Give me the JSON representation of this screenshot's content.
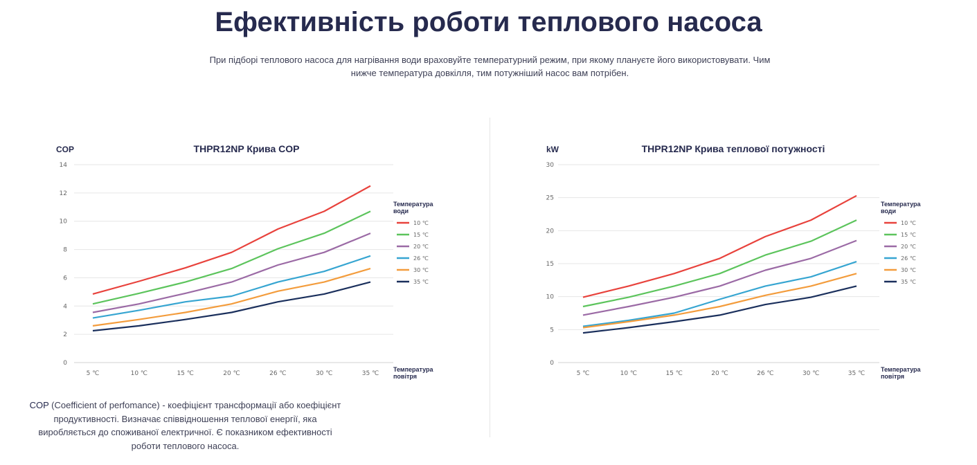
{
  "header": {
    "title": "Ефективність роботи теплового насоса",
    "subtitle": "При підборі теплового насоса для нагрівання води враховуйте температурний режим, при якому плануєте його використовувати. Чим нижче температура довкілля, тим потужніший насос вам потрібен."
  },
  "note": {
    "term": "COP",
    "text": " (Coefficient of perfomance) - коефіцієнт трансформації або коефіцієнт продуктивності. Визначає співвідношення теплової енергії, яка виробляється до споживаної електричної. Є показником ефективності роботи теплового насоса."
  },
  "chart_data": [
    {
      "type": "line",
      "title": "THPR12NP Крива COP",
      "ylabel": "COP",
      "xlabel": "Температура повітря",
      "legend_title": "Температура води",
      "legend_placement": "right",
      "grid": true,
      "ylim": [
        0,
        14
      ],
      "yticks": [
        0,
        2,
        4,
        6,
        8,
        10,
        12,
        14
      ],
      "categories": [
        "5 ℃",
        "10 ℃",
        "15 ℃",
        "20 ℃",
        "26 ℃",
        "30 ℃",
        "35 ℃"
      ],
      "series": [
        {
          "name": "10 ℃",
          "color": "#e8423c",
          "values": [
            4.85,
            5.75,
            6.7,
            7.8,
            9.45,
            10.7,
            12.5
          ]
        },
        {
          "name": "15 ℃",
          "color": "#5cc45c",
          "values": [
            4.15,
            4.9,
            5.7,
            6.65,
            8.05,
            9.15,
            10.7
          ]
        },
        {
          "name": "20 ℃",
          "color": "#9b6aa5",
          "values": [
            3.55,
            4.15,
            4.9,
            5.7,
            6.9,
            7.8,
            9.15
          ]
        },
        {
          "name": "26 ℃",
          "color": "#36a5d1",
          "values": [
            3.15,
            3.7,
            4.3,
            4.7,
            5.7,
            6.45,
            7.55
          ]
        },
        {
          "name": "30 ℃",
          "color": "#f39c3c",
          "values": [
            2.6,
            3.05,
            3.55,
            4.15,
            5.05,
            5.7,
            6.65
          ]
        },
        {
          "name": "35 ℃",
          "color": "#1a2f5c",
          "values": [
            2.25,
            2.6,
            3.05,
            3.55,
            4.3,
            4.85,
            5.7
          ]
        }
      ]
    },
    {
      "type": "line",
      "title": "THPR12NP Крива теплової потужності",
      "ylabel": "kW",
      "xlabel": "Температура повітря",
      "legend_title": "Температура води",
      "legend_placement": "right",
      "grid": true,
      "ylim": [
        0,
        30
      ],
      "yticks": [
        0,
        5,
        10,
        15,
        20,
        25,
        30
      ],
      "categories": [
        "5 ℃",
        "10 ℃",
        "15 ℃",
        "20 ℃",
        "26 ℃",
        "30 ℃",
        "35 ℃"
      ],
      "series": [
        {
          "name": "10 ℃",
          "color": "#e8423c",
          "values": [
            9.9,
            11.6,
            13.5,
            15.8,
            19.1,
            21.6,
            25.3
          ]
        },
        {
          "name": "15 ℃",
          "color": "#5cc45c",
          "values": [
            8.5,
            9.9,
            11.6,
            13.5,
            16.3,
            18.4,
            21.6
          ]
        },
        {
          "name": "20 ℃",
          "color": "#9b6aa5",
          "values": [
            7.2,
            8.5,
            9.9,
            11.6,
            14.0,
            15.8,
            18.5
          ]
        },
        {
          "name": "26 ℃",
          "color": "#36a5d1",
          "values": [
            5.5,
            6.4,
            7.5,
            9.6,
            11.6,
            13.0,
            15.3
          ]
        },
        {
          "name": "30 ℃",
          "color": "#f39c3c",
          "values": [
            5.3,
            6.2,
            7.2,
            8.5,
            10.2,
            11.6,
            13.5
          ]
        },
        {
          "name": "35 ℃",
          "color": "#1a2f5c",
          "values": [
            4.5,
            5.3,
            6.2,
            7.2,
            8.8,
            9.9,
            11.6
          ]
        }
      ]
    }
  ]
}
